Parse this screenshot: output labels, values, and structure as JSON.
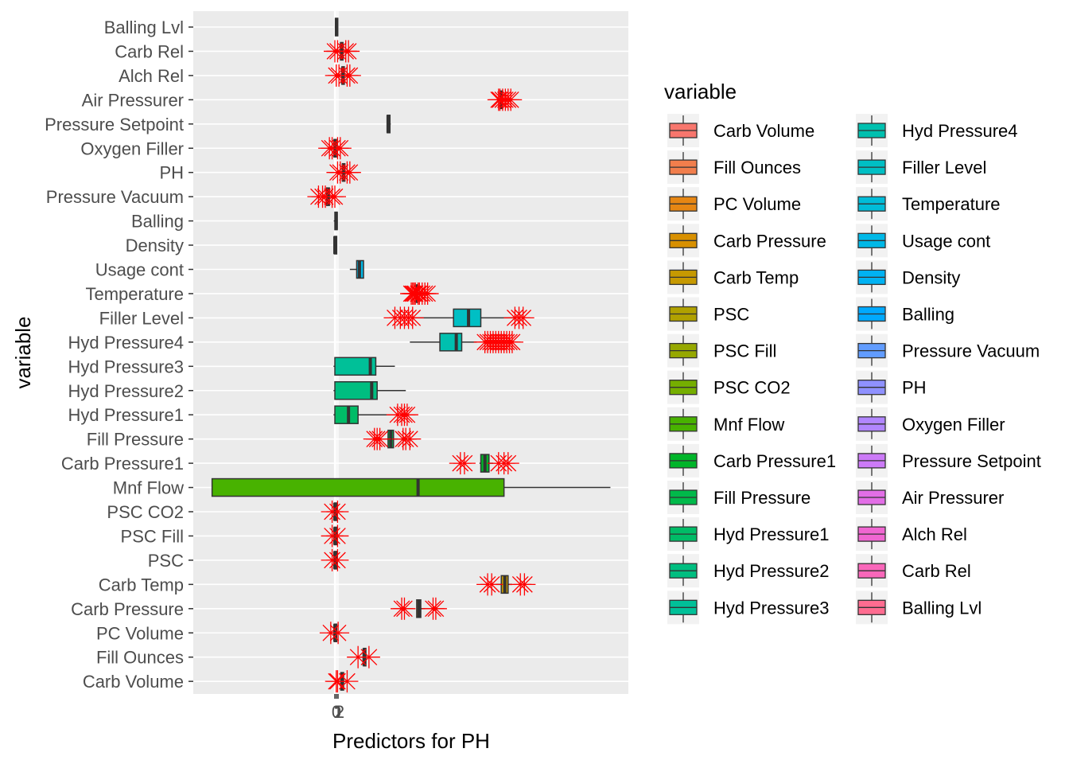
{
  "chart_data": {
    "type": "boxplot",
    "orientation": "horizontal",
    "title": "",
    "xlabel": "Predictors for PH",
    "ylabel": "variable",
    "x_ticks": [
      "0",
      "1",
      "2"
    ],
    "xlim": [
      -5.5,
      10.5
    ],
    "grid": true,
    "outlier_marker": "asterisk",
    "outlier_color": "#FF0000",
    "legend": {
      "title": "variable",
      "placement": "right",
      "columns": 2
    },
    "series": [
      {
        "name": "Carb Volume",
        "color": "#F8766D",
        "box": [
          0.14,
          0.22,
          0.26,
          0.32,
          0.4
        ],
        "outliers": [
          0.05,
          0.1,
          0.45
        ]
      },
      {
        "name": "Fill Ounces",
        "color": "#F17E4C",
        "box": [
          1.0,
          1.05,
          1.07,
          1.1,
          1.15
        ],
        "outliers": [
          0.85,
          1.25
        ]
      },
      {
        "name": "PC Volume",
        "color": "#E68613",
        "box": [
          -0.08,
          -0.02,
          0.0,
          0.03,
          0.08
        ],
        "outliers": [
          -0.15,
          0.12
        ]
      },
      {
        "name": "Carb Pressure",
        "color": "#D89000",
        "box": [
          3.0,
          3.0,
          3.08,
          3.15,
          3.3
        ],
        "outliers": [
          2.45,
          2.55,
          3.6,
          3.7
        ]
      },
      {
        "name": "Carb Temp",
        "color": "#C69900",
        "box": [
          5.9,
          6.1,
          6.23,
          6.35,
          6.5
        ],
        "outliers": [
          5.6,
          5.75,
          6.8,
          6.95
        ]
      },
      {
        "name": "PSC",
        "color": "#B0A100",
        "box": [
          -0.05,
          -0.02,
          0.0,
          0.03,
          0.06
        ],
        "outliers": [
          -0.1,
          0.1
        ]
      },
      {
        "name": "PSC Fill",
        "color": "#96A800",
        "box": [
          -0.05,
          -0.02,
          0.0,
          0.03,
          0.06
        ],
        "outliers": [
          -0.1,
          0.1
        ]
      },
      {
        "name": "PSC CO2",
        "color": "#75AE00",
        "box": [
          -0.05,
          -0.02,
          0.0,
          0.03,
          0.06
        ],
        "outliers": [
          -0.1,
          0.1
        ]
      },
      {
        "name": "Mnf Flow",
        "color": "#48B200",
        "box": [
          -4.5,
          -4.5,
          3.05,
          6.2,
          10.1
        ],
        "outliers": []
      },
      {
        "name": "Carb Pressure1",
        "color": "#00B529",
        "box": [
          5.3,
          5.35,
          5.5,
          5.65,
          5.8
        ],
        "outliers": [
          4.6,
          4.75,
          6.0,
          6.2,
          6.35
        ]
      },
      {
        "name": "Fill Pressure",
        "color": "#00B94A",
        "box": [
          1.9,
          1.95,
          2.05,
          2.15,
          2.3
        ],
        "outliers": [
          1.45,
          1.55,
          1.65,
          2.5,
          2.6,
          2.75
        ]
      },
      {
        "name": "Hyd Pressure1",
        "color": "#00BC67",
        "box": [
          -0.05,
          0.0,
          0.5,
          0.85,
          2.3
        ],
        "outliers": [
          2.3,
          2.45,
          2.55,
          2.65
        ]
      },
      {
        "name": "Hyd Pressure2",
        "color": "#00BE80",
        "box": [
          -0.05,
          0.0,
          1.35,
          1.55,
          2.6
        ],
        "outliers": []
      },
      {
        "name": "Hyd Pressure3",
        "color": "#00C098",
        "box": [
          -0.05,
          0.0,
          1.3,
          1.5,
          2.2
        ],
        "outliers": []
      },
      {
        "name": "Hyd Pressure4",
        "color": "#00C0AF",
        "box": [
          2.75,
          3.85,
          4.45,
          4.65,
          5.2
        ],
        "outliers": [
          5.5,
          5.6,
          5.7,
          5.8,
          5.9,
          6.0,
          6.1,
          6.2,
          6.3,
          6.4,
          6.5
        ]
      },
      {
        "name": "Filler Level",
        "color": "#00BFC4",
        "box": [
          2.8,
          4.35,
          4.9,
          5.35,
          6.6
        ],
        "outliers": [
          2.2,
          2.4,
          2.55,
          2.7,
          2.85,
          6.6,
          6.75,
          6.9
        ]
      },
      {
        "name": "Temperature",
        "color": "#00BCD8",
        "box": [
          2.9,
          2.95,
          3.0,
          3.05,
          3.1
        ],
        "outliers": [
          2.8,
          2.85,
          2.9,
          2.95,
          3.05,
          3.1,
          3.2,
          3.3,
          3.4
        ]
      },
      {
        "name": "Usage cont",
        "color": "#00B8E7",
        "box": [
          0.55,
          0.8,
          0.9,
          1.05,
          1.05
        ],
        "outliers": []
      },
      {
        "name": "Density",
        "color": "#00B2F3",
        "box": [
          -0.04,
          -0.02,
          0.0,
          0.02,
          0.04
        ],
        "outliers": []
      },
      {
        "name": "Balling",
        "color": "#00A9FF",
        "box": [
          -0.04,
          0.0,
          0.05,
          0.08,
          0.1
        ],
        "outliers": []
      },
      {
        "name": "Pressure Vacuum",
        "color": "#619CFF",
        "box": [
          -0.35,
          -0.3,
          -0.25,
          -0.2,
          -0.15
        ],
        "outliers": [
          -0.6,
          -0.45,
          -0.35,
          -0.1,
          0.0
        ]
      },
      {
        "name": "PH",
        "color": "#8F91FF",
        "box": [
          0.25,
          0.28,
          0.31,
          0.34,
          0.37
        ],
        "outliers": [
          0.1,
          0.2,
          0.45,
          0.55
        ]
      },
      {
        "name": "Oxygen Filler",
        "color": "#B186FF",
        "box": [
          -0.05,
          -0.03,
          0.0,
          0.03,
          0.05
        ],
        "outliers": [
          -0.2,
          -0.1,
          0.1,
          0.2
        ]
      },
      {
        "name": "Pressure Setpoint",
        "color": "#CC7AF7",
        "box": [
          1.9,
          1.92,
          1.95,
          2.02,
          2.05
        ],
        "outliers": []
      },
      {
        "name": "Air Pressurer",
        "color": "#E26EE6",
        "box": [
          6.0,
          6.05,
          6.1,
          6.15,
          6.2
        ],
        "outliers": [
          6.0,
          6.05,
          6.15,
          6.25,
          6.35,
          6.45
        ]
      },
      {
        "name": "Alch Rel",
        "color": "#F066D1",
        "box": [
          0.22,
          0.26,
          0.29,
          0.32,
          0.36
        ],
        "outliers": [
          0.05,
          0.15,
          0.45,
          0.55
        ]
      },
      {
        "name": "Carb Rel",
        "color": "#F967BA",
        "box": [
          0.16,
          0.21,
          0.24,
          0.27,
          0.32
        ],
        "outliers": [
          0.0,
          0.1,
          0.4,
          0.5
        ]
      },
      {
        "name": "Balling Lvl",
        "color": "#FF6C90",
        "box": [
          0.0,
          0.02,
          0.06,
          0.08,
          0.1
        ],
        "outliers": []
      }
    ]
  }
}
